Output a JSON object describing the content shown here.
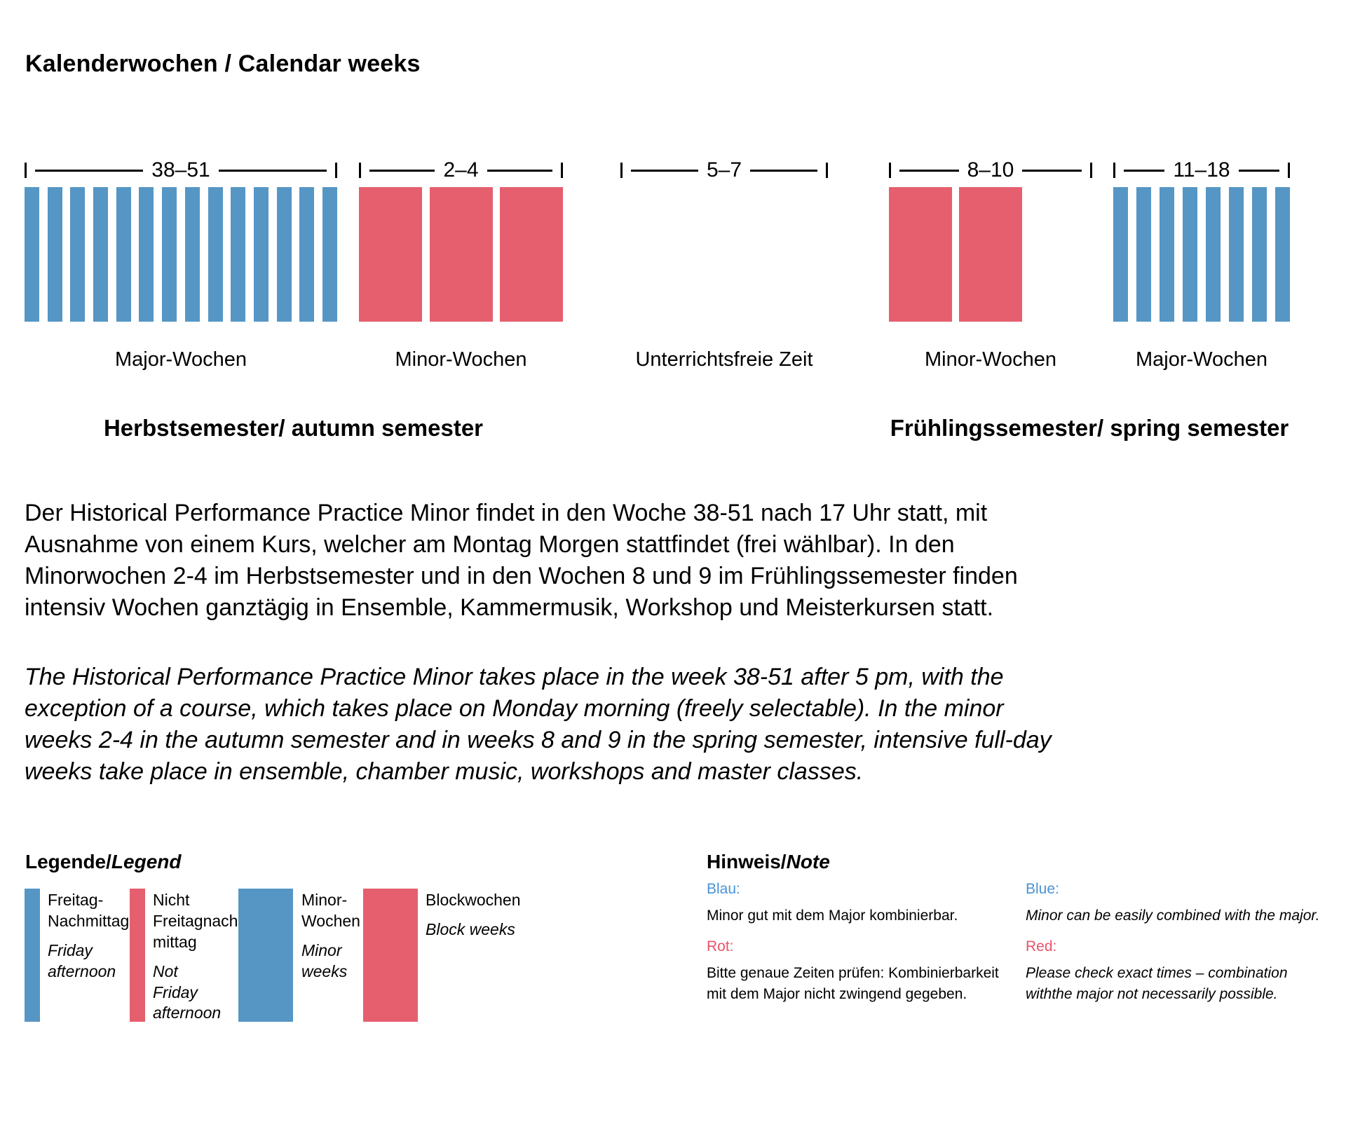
{
  "page_title": "Kalenderwochen / Calendar weeks",
  "colors": {
    "bar_blue": "#5596c5",
    "bar_red": "#e55f6e",
    "text_blue": "#4a93d4",
    "text_red": "#e8536a",
    "background": "#ffffff"
  },
  "chart_data": {
    "type": "bar",
    "title": "Kalenderwochen / Calendar weeks",
    "unit": "calendar weeks",
    "legend_position": "bottom-left",
    "groups": [
      {
        "range_label": "38–51",
        "bars": 14,
        "slots": 14,
        "bar_style": "thin",
        "color": "blue",
        "category_label": "Major-Wochen",
        "semester": "autumn"
      },
      {
        "range_label": "2–4",
        "bars": 3,
        "slots": 3,
        "bar_style": "wide",
        "color": "red",
        "category_label": "Minor-Wochen",
        "semester": "autumn"
      },
      {
        "range_label": "5–7",
        "bars": 0,
        "slots": 3,
        "bar_style": "none",
        "color": null,
        "category_label": "Unterrichtsfreie Zeit",
        "semester": null
      },
      {
        "range_label": "8–10",
        "bars": 2,
        "slots": 3,
        "bar_style": "wide",
        "color": "red",
        "category_label": "Minor-Wochen",
        "semester": "spring"
      },
      {
        "range_label": "11–18",
        "bars": 8,
        "slots": 8,
        "bar_style": "thin",
        "color": "blue",
        "category_label": "Major-Wochen",
        "semester": "spring"
      }
    ],
    "semester_labels": {
      "autumn": "Herbstsemester/ autumn semester",
      "spring": "Frühlingssemester/ spring semester"
    }
  },
  "paragraphs": {
    "german": "Der Historical Performance Practice Minor findet in den Woche 38-51 nach 17 Uhr statt, mit Ausnahme von einem Kurs, welcher am Montag Morgen stattfindet (frei wählbar). In den Minorwochen 2-4 im Herbstsemester und in den Wochen 8 und 9 im Frühlingssemester finden intensiv Wochen ganztägig in Ensemble, Kammermusik, Workshop und Meisterkursen statt.",
    "english": "The Historical Performance Practice Minor takes place in the week 38-51 after 5 pm, with the exception of a course, which takes place on Monday morning (freely selectable). In the minor weeks 2-4 in the autumn semester and in weeks 8 and 9 in the spring semester, intensive full-day weeks take place in ensemble, chamber music, workshops and master classes."
  },
  "legend": {
    "title_de": "Legende/",
    "title_en": "Legend",
    "items": [
      {
        "color": "blue",
        "style": "thin",
        "label_de": "Freitag-\nNachmittag",
        "label_en": "Friday\nafternoon"
      },
      {
        "color": "red",
        "style": "thin",
        "label_de": "Nicht\nFreitagnach-\nmittag",
        "label_en": "Not\nFriday\nafternoon"
      },
      {
        "color": "blue",
        "style": "wide",
        "label_de": "Minor-\nWochen",
        "label_en": "Minor\nweeks"
      },
      {
        "color": "red",
        "style": "wide",
        "label_de": "Blockwochen",
        "label_en": "Block weeks"
      }
    ]
  },
  "note": {
    "title_de": "Hinweis/",
    "title_en": "Note",
    "german": [
      {
        "heading": "Blau:",
        "color": "blue",
        "text": "Minor gut mit dem Major kombinierbar."
      },
      {
        "heading": "Rot:",
        "color": "red",
        "text": "Bitte genaue Zeiten prüfen: Kombinierbarkeit\nmit dem Major nicht zwingend gegeben."
      }
    ],
    "english": [
      {
        "heading": "Blue:",
        "color": "blue",
        "text": "Minor can be easily combined with the major."
      },
      {
        "heading": "Red:",
        "color": "red",
        "text": "Please check exact times – combination\nwiththe major not necessarily possible."
      }
    ]
  }
}
